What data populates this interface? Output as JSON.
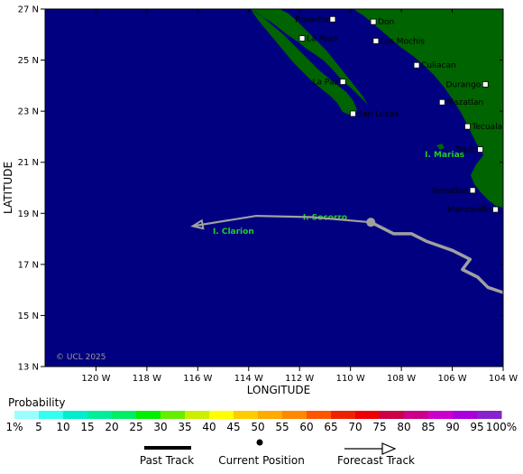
{
  "map": {
    "lon_range": [
      -122,
      -104
    ],
    "lat_range": [
      13,
      27
    ],
    "ocean_color": "#000080",
    "land_color": "#006400",
    "x_ticks": [
      {
        "value": -120,
        "label": "120 W"
      },
      {
        "value": -118,
        "label": "118 W"
      },
      {
        "value": -116,
        "label": "116 W"
      },
      {
        "value": -114,
        "label": "114 W"
      },
      {
        "value": -112,
        "label": "112 W"
      },
      {
        "value": -110,
        "label": "110 W"
      },
      {
        "value": -108,
        "label": "108 W"
      },
      {
        "value": -106,
        "label": "106 W"
      },
      {
        "value": -104,
        "label": "104 W"
      }
    ],
    "y_ticks": [
      {
        "value": 27,
        "label": "27 N"
      },
      {
        "value": 25,
        "label": "25 N"
      },
      {
        "value": 23,
        "label": "23 N"
      },
      {
        "value": 21,
        "label": "21 N"
      },
      {
        "value": 19,
        "label": "19 N"
      },
      {
        "value": 17,
        "label": "17 N"
      },
      {
        "value": 15,
        "label": "15 N"
      },
      {
        "value": 13,
        "label": "13 N"
      }
    ],
    "xlabel": "LONGITUDE",
    "ylabel": "LATITUDE",
    "copyright": "© UCL 2025",
    "cities": [
      {
        "name": "Rosarito",
        "lon": -110.7,
        "lat": 26.6,
        "side": "left"
      },
      {
        "name": "Don",
        "lon": -109.1,
        "lat": 26.5,
        "side": "right"
      },
      {
        "name": "La Poza",
        "lon": -111.9,
        "lat": 25.85,
        "side": "right"
      },
      {
        "name": "Los Mochis",
        "lon": -109.0,
        "lat": 25.75,
        "side": "right"
      },
      {
        "name": "Culiacan",
        "lon": -107.4,
        "lat": 24.8,
        "side": "right"
      },
      {
        "name": "La Paz",
        "lon": -110.3,
        "lat": 24.15,
        "side": "left"
      },
      {
        "name": "Durango",
        "lon": -104.7,
        "lat": 24.05,
        "side": "left"
      },
      {
        "name": "Mazatlan",
        "lon": -106.4,
        "lat": 23.35,
        "side": "right"
      },
      {
        "name": "San Lucas",
        "lon": -109.9,
        "lat": 22.9,
        "side": "right"
      },
      {
        "name": "Tecuala",
        "lon": -105.4,
        "lat": 22.4,
        "side": "right"
      },
      {
        "name": "Tepic",
        "lon": -104.9,
        "lat": 21.5,
        "side": "left"
      },
      {
        "name": "Tomatlan",
        "lon": -105.2,
        "lat": 19.9,
        "side": "left"
      },
      {
        "name": "Manzanillo",
        "lon": -104.3,
        "lat": 19.15,
        "side": "left"
      }
    ],
    "islands": [
      {
        "name": "I. Marias",
        "lon": -106.3,
        "lat": 21.2
      },
      {
        "name": "I. Socorro",
        "lon": -111.0,
        "lat": 18.75
      },
      {
        "name": "I. Clarion",
        "lon": -114.6,
        "lat": 18.2
      }
    ],
    "past_track": [
      [
        -109.1,
        18.6
      ],
      [
        -108.3,
        18.2
      ],
      [
        -107.6,
        18.2
      ],
      [
        -107.0,
        17.9
      ],
      [
        -106.0,
        17.55
      ],
      [
        -105.3,
        17.2
      ],
      [
        -105.6,
        16.8
      ],
      [
        -105.0,
        16.5
      ],
      [
        -104.6,
        16.1
      ],
      [
        -104.0,
        15.9
      ]
    ],
    "current_position": [
      -109.2,
      18.65
    ],
    "forecast_track": [
      [
        -109.2,
        18.65
      ],
      [
        -111.5,
        18.85
      ],
      [
        -113.7,
        18.9
      ],
      [
        -116.2,
        18.5
      ]
    ],
    "track_color": "#a0a0a0"
  },
  "legend": {
    "title": "Probability",
    "bins": [
      {
        "label": "1%",
        "color": "#99ffff"
      },
      {
        "label": "5",
        "color": "#33ffee"
      },
      {
        "label": "10",
        "color": "#00eecc"
      },
      {
        "label": "15",
        "color": "#00ee99"
      },
      {
        "label": "20",
        "color": "#00ee66"
      },
      {
        "label": "25",
        "color": "#00ee00"
      },
      {
        "label": "30",
        "color": "#66ee00"
      },
      {
        "label": "35",
        "color": "#ccee00"
      },
      {
        "label": "40",
        "color": "#ffff00"
      },
      {
        "label": "45",
        "color": "#ffcc00"
      },
      {
        "label": "50",
        "color": "#ffaa00"
      },
      {
        "label": "55",
        "color": "#ff8800"
      },
      {
        "label": "60",
        "color": "#ff5500"
      },
      {
        "label": "65",
        "color": "#ee2200"
      },
      {
        "label": "70",
        "color": "#ee0000"
      },
      {
        "label": "75",
        "color": "#cc0044"
      },
      {
        "label": "80",
        "color": "#cc0088"
      },
      {
        "label": "85",
        "color": "#cc00cc"
      },
      {
        "label": "90",
        "color": "#aa00dd"
      },
      {
        "label": "95",
        "color": "#8822cc"
      },
      {
        "label": "100%",
        "color": "#660099"
      }
    ],
    "past_track_label": "Past Track",
    "current_position_label": "Current Position",
    "forecast_track_label": "Forecast Track"
  }
}
